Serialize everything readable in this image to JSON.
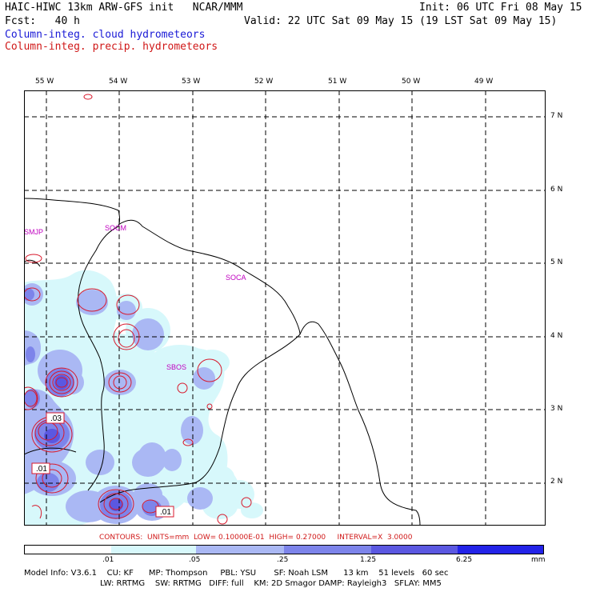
{
  "header": {
    "line1_left": "HAIC-HIWC 13km ARW-GFS init   NCAR/MMM",
    "line1_right": "Init: 06 UTC Fri 08 May 15",
    "line2_left": "Fcst:   40 h",
    "line2_right": "Valid: 22 UTC Sat 09 May 15 (19 LST Sat 09 May 15)",
    "field_cloud": "Column-integ. cloud hydrometeors",
    "field_precip": "Column-integ. precip. hydrometeors"
  },
  "map": {
    "lon_labels": [
      "55 W",
      "54 W",
      "53 W",
      "52 W",
      "51 W",
      "50 W",
      "49 W"
    ],
    "lat_labels": [
      "7 N",
      "6 N",
      "5 N",
      "4 N",
      "3 N",
      "2 N"
    ],
    "stations": [
      "SMJP",
      "SOCM",
      "SOCA",
      "SBOS"
    ],
    "contour_values": [
      ".03",
      ".01",
      ".01"
    ],
    "colors": {
      "shade1": "#d7f8fb",
      "shade2": "#aab8f4",
      "shade3": "#7d84ea",
      "shade4": "#5b58e1",
      "contour": "#d8192c",
      "coast": "#000000",
      "station": "#c000c0"
    }
  },
  "contour_info": "CONTOURS:  UNITS=mm  LOW= 0.10000E-01  HIGH= 0.27000     INTERVAL=X  3.0000",
  "colorbar": {
    "ticks": [
      ".01",
      ".05",
      ".25",
      "1.25",
      "6.25"
    ],
    "units": "mm",
    "colors": [
      "#ffffff",
      "#d7f8fb",
      "#aab8f4",
      "#7d84ea",
      "#5b58e1",
      "#2323e8"
    ]
  },
  "footer": {
    "line1": "Model Info: V3.6.1    CU: KF      MP: Thompson     PBL: YSU       SF: Noah LSM      13 km    51 levels   60 sec",
    "line2": "LW: RRTMG    SW: RRTMG   DIFF: full    KM: 2D Smagor DAMP: Rayleigh3   SFLAY: MM5"
  }
}
